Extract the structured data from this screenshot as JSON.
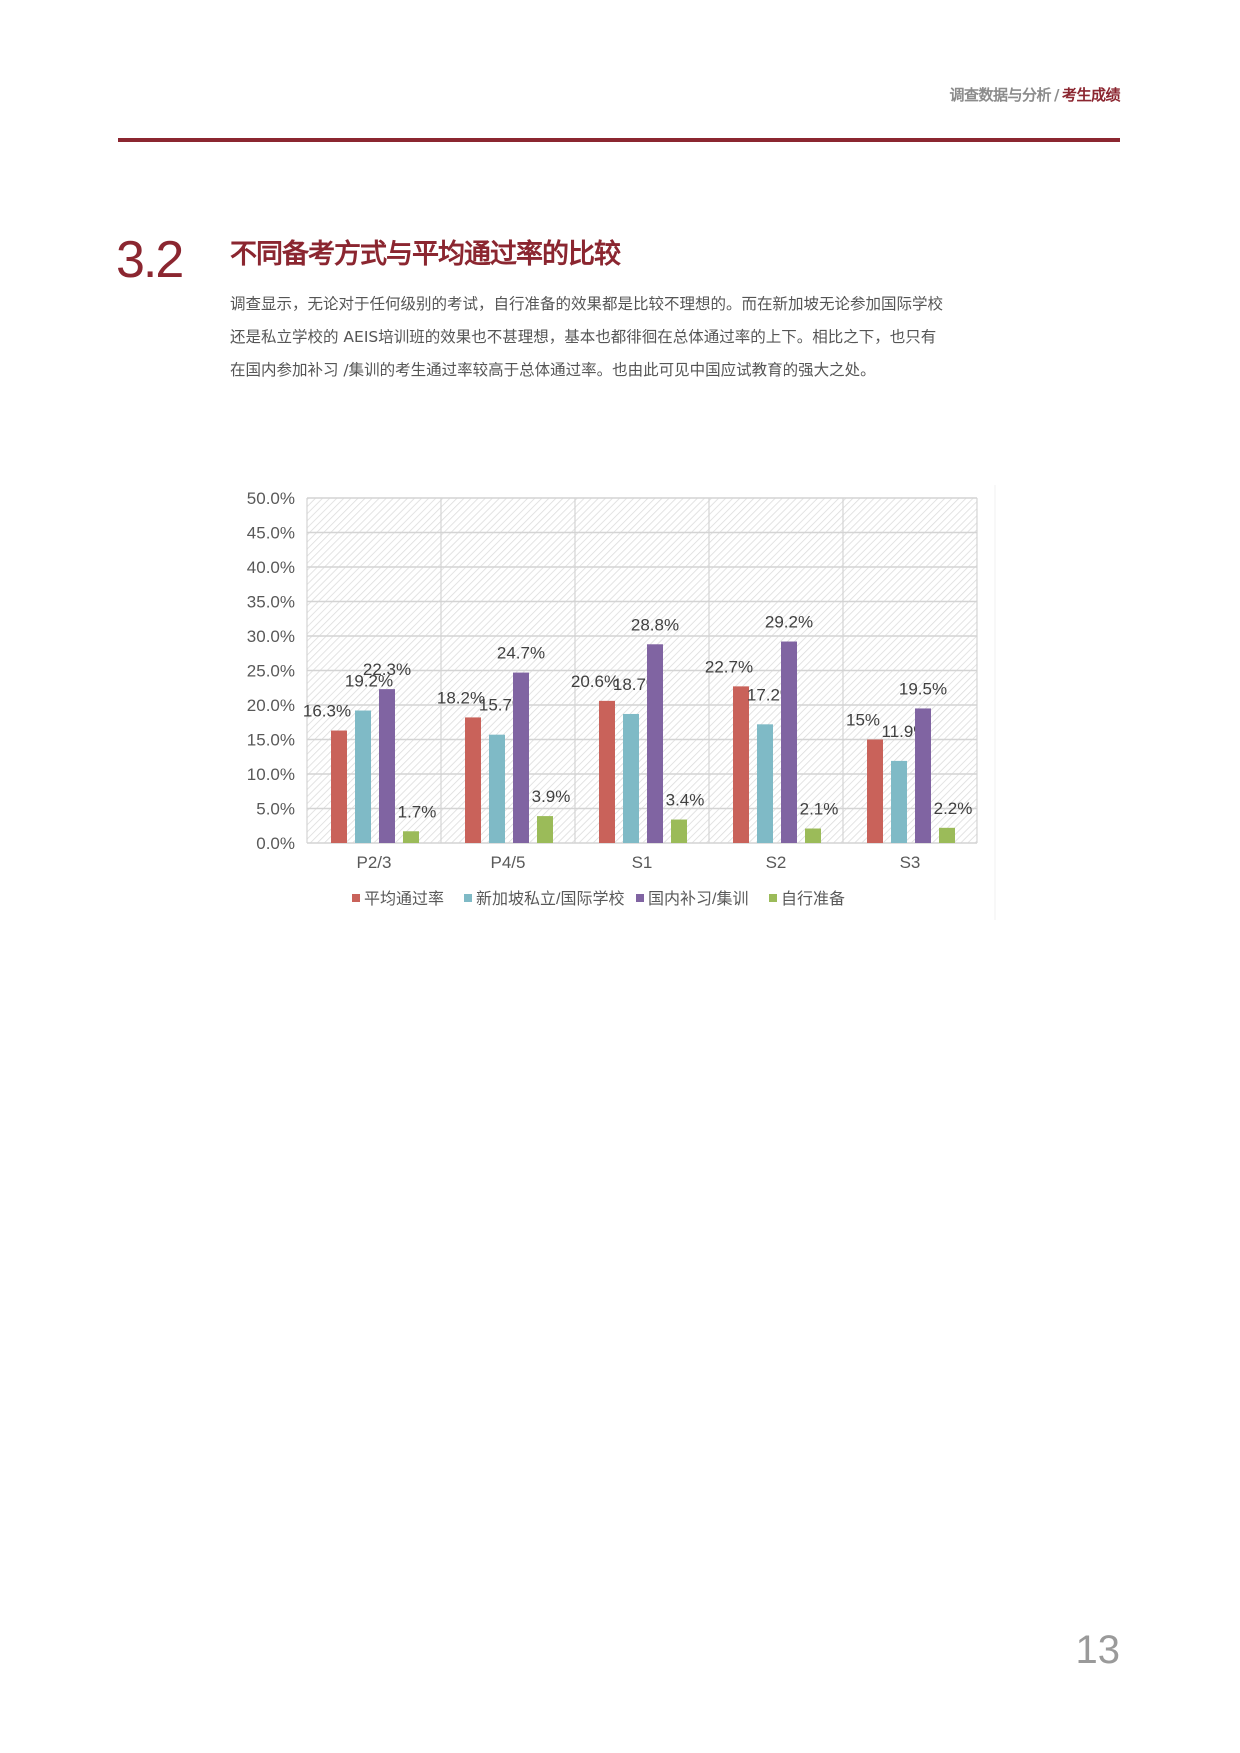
{
  "header": {
    "section": "调查数据与分析",
    "separator": "/",
    "chapter": "考生成绩"
  },
  "section": {
    "number": "3.2",
    "title": "不同备考方式与平均通过率的比较",
    "paragraph_lines": [
      "调查显示，无论对于任何级别的考试，自行准备的效果都是比较不理想的。而在新加坡无论参加国际学校",
      "还是私立学校的 AEIS培训班的效果也不甚理想，基本也都徘徊在总体通过率的上下。相比之下，也只有",
      "在国内参加补习 /集训的考生通过率较高于总体通过率。也由此可见中国应试教育的强大之处。"
    ]
  },
  "page_number": "13",
  "chart_data": {
    "type": "bar",
    "categories": [
      "P2/3",
      "P4/5",
      "S1",
      "S2",
      "S3"
    ],
    "series": [
      {
        "name": "平均通过率",
        "color": "#c9625a",
        "values": [
          16.3,
          18.2,
          20.6,
          22.7,
          15
        ],
        "labels": [
          "16.3%",
          "18.2%",
          "20.6%",
          "22.7%",
          "15%"
        ]
      },
      {
        "name": "新加坡私立/国际学校",
        "color": "#7fbac6",
        "values": [
          19.2,
          15.7,
          18.7,
          17.2,
          11.9
        ],
        "labels": [
          "19.2%",
          "15.7%",
          "18.7%",
          "17.2%",
          "11.9%"
        ]
      },
      {
        "name": "国内补习/集训",
        "color": "#8064a2",
        "values": [
          22.3,
          24.7,
          28.8,
          29.2,
          19.5
        ],
        "labels": [
          "22.3%",
          "24.7%",
          "28.8%",
          "29.2%",
          "19.5%"
        ]
      },
      {
        "name": "自行准备",
        "color": "#9bbb59",
        "values": [
          1.7,
          3.9,
          3.4,
          2.1,
          2.2
        ],
        "labels": [
          "1.7%",
          "3.9%",
          "3.4%",
          "2.1%",
          "2.2%"
        ]
      }
    ],
    "yticks": [
      "0.0%",
      "5.0%",
      "10.0%",
      "15.0%",
      "20.0%",
      "25.0%",
      "30.0%",
      "35.0%",
      "40.0%",
      "45.0%",
      "50.0%"
    ],
    "ylim": [
      0,
      50
    ],
    "grid": true,
    "legend": "bottom",
    "title": "",
    "xlabel": "",
    "ylabel": ""
  }
}
